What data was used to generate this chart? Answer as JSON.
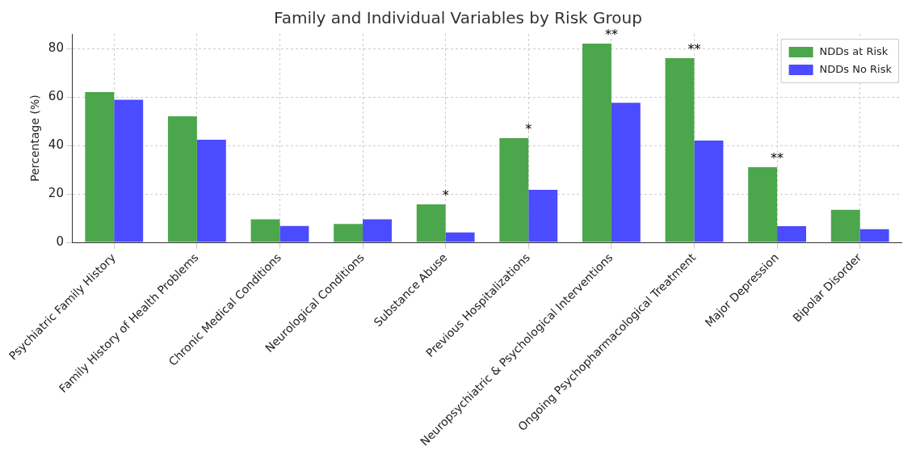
{
  "chart_data": {
    "type": "bar",
    "title": "Family and Individual Variables by Risk Group",
    "ylabel": "Percentage (%)",
    "categories": [
      "Psychiatric Family History",
      "Family History of Health Problems",
      "Chronic Medical Conditions",
      "Neurological Conditions",
      "Substance Abuse",
      "Previous Hospitalizations",
      "Neuropsychiatric & Psychological Interventions",
      "Ongoing Psychopharmacological Treatment",
      "Major Depression",
      "Bipolar Disorder"
    ],
    "series": [
      {
        "name": "NDDs at Risk",
        "color": "#4ca64c",
        "values": [
          62,
          52,
          9.5,
          7.6,
          15.7,
          43,
          82,
          76,
          31,
          13.4
        ]
      },
      {
        "name": "NDDs No Risk",
        "color": "#4b4bff",
        "values": [
          58.8,
          42.3,
          6.8,
          9.5,
          4.1,
          21.7,
          57.6,
          42,
          6.7,
          5.4
        ]
      }
    ],
    "ylim": [
      0,
      86
    ],
    "yticks": [
      0,
      20,
      40,
      60,
      80
    ],
    "grid": true,
    "legend": "top right",
    "annotations": [
      {
        "text": "*",
        "x": "Substance Abuse",
        "y": 15.7
      },
      {
        "text": "*",
        "x": "Previous Hospitalizations",
        "y": 43
      },
      {
        "text": "**",
        "x": "Neuropsychiatric & Psychological Interventions",
        "y": 82
      },
      {
        "text": "**",
        "x": "Ongoing Psychopharmacological Treatment",
        "y": 76
      },
      {
        "text": "**",
        "x": "Major Depression",
        "y": 31
      }
    ]
  }
}
